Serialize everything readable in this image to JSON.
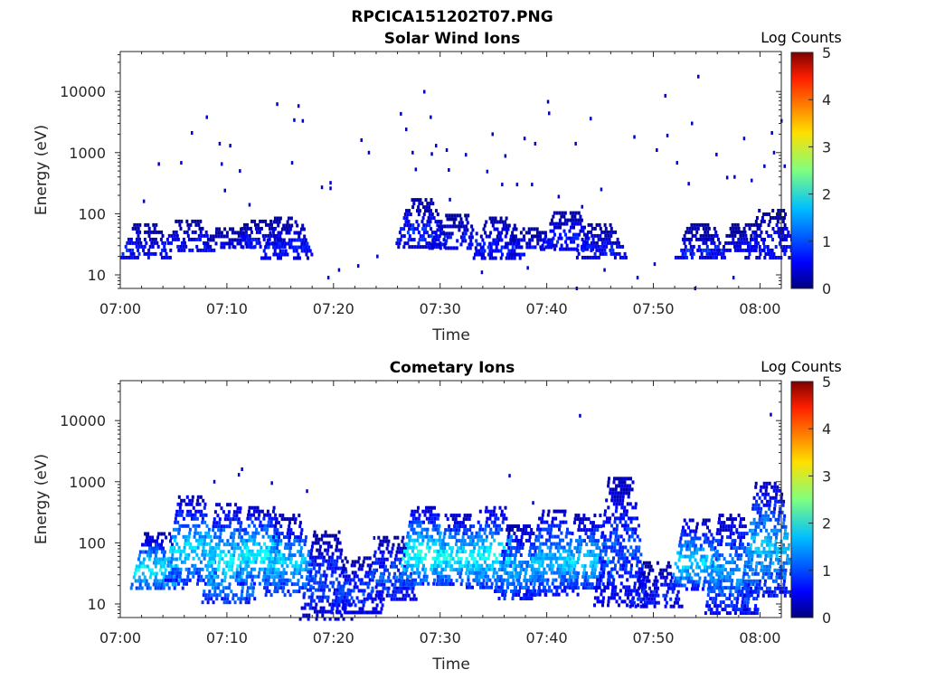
{
  "figure_title": "RPCICA151202T07.PNG",
  "chart_data": [
    {
      "type": "heatmap",
      "title": "Solar Wind Ions",
      "xlabel": "Time",
      "ylabel": "Energy (eV)",
      "x_ticks": [
        "07:00",
        "07:10",
        "07:20",
        "07:30",
        "07:40",
        "07:50",
        "08:00"
      ],
      "y_ticks": [
        "10",
        "100",
        "1000",
        "10000"
      ],
      "y_scale": "log",
      "xlim_minutes": [
        0,
        62
      ],
      "ylim": [
        6,
        45000
      ],
      "colorbar": {
        "label": "Log Counts",
        "ticks": [
          "0",
          "1",
          "2",
          "3",
          "4",
          "5"
        ],
        "range": [
          0,
          5
        ],
        "colormap": "jet"
      },
      "clusters": [
        {
          "t": 2.4,
          "e_lo": 18,
          "e_hi": 70,
          "level": 0.7
        },
        {
          "t": 6.3,
          "e_lo": 25,
          "e_hi": 80,
          "level": 0.7
        },
        {
          "t": 10.1,
          "e_lo": 30,
          "e_hi": 60,
          "level": 0.6
        },
        {
          "t": 12.9,
          "e_lo": 28,
          "e_hi": 80,
          "level": 0.7
        },
        {
          "t": 15.6,
          "e_lo": 18,
          "e_hi": 90,
          "level": 0.7
        },
        {
          "t": 28.2,
          "e_lo": 28,
          "e_hi": 180,
          "level": 0.8
        },
        {
          "t": 31.4,
          "e_lo": 28,
          "e_hi": 100,
          "level": 0.7
        },
        {
          "t": 35.5,
          "e_lo": 18,
          "e_hi": 90,
          "level": 0.7
        },
        {
          "t": 38.4,
          "e_lo": 28,
          "e_hi": 60,
          "level": 0.6
        },
        {
          "t": 41.8,
          "e_lo": 25,
          "e_hi": 110,
          "level": 0.7
        },
        {
          "t": 45.0,
          "e_lo": 20,
          "e_hi": 70,
          "level": 0.7
        },
        {
          "t": 54.4,
          "e_lo": 18,
          "e_hi": 70,
          "level": 0.7
        },
        {
          "t": 58.5,
          "e_lo": 25,
          "e_hi": 70,
          "level": 0.6
        },
        {
          "t": 61.0,
          "e_lo": 18,
          "e_hi": 120,
          "level": 0.7
        }
      ],
      "scatter": [
        [
          2.2,
          160
        ],
        [
          3.6,
          650
        ],
        [
          5.7,
          680
        ],
        [
          6.7,
          2100
        ],
        [
          8.1,
          3800
        ],
        [
          9.3,
          1400
        ],
        [
          9.5,
          650
        ],
        [
          9.8,
          240
        ],
        [
          10.3,
          1300
        ],
        [
          11.2,
          500
        ],
        [
          12.1,
          140
        ],
        [
          14.7,
          6200
        ],
        [
          16.7,
          5800
        ],
        [
          16.3,
          3400
        ],
        [
          17.1,
          3300
        ],
        [
          16.1,
          680
        ],
        [
          18.9,
          270
        ],
        [
          19.7,
          260
        ],
        [
          19.7,
          320
        ],
        [
          22.6,
          1600
        ],
        [
          23.3,
          1000
        ],
        [
          26.3,
          4300
        ],
        [
          26.8,
          2400
        ],
        [
          27.4,
          1000
        ],
        [
          27.7,
          530
        ],
        [
          28.5,
          9900
        ],
        [
          29.1,
          3800
        ],
        [
          29.2,
          950
        ],
        [
          29.6,
          1300
        ],
        [
          30.6,
          1100
        ],
        [
          30.8,
          520
        ],
        [
          30.9,
          170
        ],
        [
          32.4,
          920
        ],
        [
          34.4,
          490
        ],
        [
          34.9,
          2000
        ],
        [
          35.8,
          300
        ],
        [
          36.1,
          880
        ],
        [
          37.2,
          300
        ],
        [
          37.9,
          1700
        ],
        [
          38.6,
          300
        ],
        [
          38.9,
          1400
        ],
        [
          40.1,
          6800
        ],
        [
          40.2,
          4400
        ],
        [
          41.1,
          190
        ],
        [
          42.7,
          1400
        ],
        [
          43.3,
          130
        ],
        [
          44.1,
          3600
        ],
        [
          45.1,
          250
        ],
        [
          48.2,
          1800
        ],
        [
          50.3,
          1100
        ],
        [
          51.1,
          8500
        ],
        [
          51.3,
          1900
        ],
        [
          52.2,
          680
        ],
        [
          53.6,
          3000
        ],
        [
          54.2,
          17500
        ],
        [
          53.3,
          310
        ],
        [
          55.9,
          930
        ],
        [
          56.9,
          390
        ],
        [
          57.6,
          400
        ],
        [
          58.5,
          1700
        ],
        [
          59.2,
          350
        ],
        [
          60.4,
          600
        ],
        [
          61.1,
          2100
        ],
        [
          61.3,
          1000
        ],
        [
          62.0,
          3300
        ],
        [
          62.3,
          600
        ],
        [
          19.5,
          9
        ],
        [
          20.5,
          12
        ],
        [
          22.3,
          14
        ],
        [
          24.1,
          20
        ],
        [
          33.9,
          11
        ],
        [
          38.2,
          13
        ],
        [
          42.8,
          6
        ],
        [
          45.4,
          12
        ],
        [
          48.5,
          9
        ],
        [
          50.1,
          15
        ],
        [
          53.9,
          6
        ],
        [
          57.5,
          9
        ]
      ]
    },
    {
      "type": "heatmap",
      "title": "Cometary Ions",
      "xlabel": "Time",
      "ylabel": "Energy (eV)",
      "x_ticks": [
        "07:00",
        "07:10",
        "07:20",
        "07:30",
        "07:40",
        "07:50",
        "08:00"
      ],
      "y_ticks": [
        "10",
        "100",
        "1000",
        "10000"
      ],
      "y_scale": "log",
      "xlim_minutes": [
        0,
        62
      ],
      "ylim": [
        6,
        45000
      ],
      "colorbar": {
        "label": "Log Counts",
        "ticks": [
          "0",
          "1",
          "2",
          "3",
          "4",
          "5"
        ],
        "range": [
          0,
          5
        ],
        "colormap": "jet"
      },
      "clusters": [
        {
          "t": 3.4,
          "e_lo": 18,
          "e_hi": 150,
          "level": 1.9
        },
        {
          "t": 6.6,
          "e_lo": 22,
          "e_hi": 600,
          "level": 1.7
        },
        {
          "t": 10.1,
          "e_lo": 10,
          "e_hi": 450,
          "level": 1.8
        },
        {
          "t": 13.2,
          "e_lo": 22,
          "e_hi": 400,
          "level": 1.9
        },
        {
          "t": 15.8,
          "e_lo": 14,
          "e_hi": 300,
          "level": 1.6
        },
        {
          "t": 19.3,
          "e_lo": 6,
          "e_hi": 160,
          "level": 1.0
        },
        {
          "t": 22.2,
          "e_lo": 7,
          "e_hi": 60,
          "level": 0.9
        },
        {
          "t": 25.3,
          "e_lo": 12,
          "e_hi": 130,
          "level": 1.1
        },
        {
          "t": 28.5,
          "e_lo": 22,
          "e_hi": 400,
          "level": 2.0
        },
        {
          "t": 31.6,
          "e_lo": 22,
          "e_hi": 300,
          "level": 1.9
        },
        {
          "t": 34.9,
          "e_lo": 18,
          "e_hi": 400,
          "level": 1.9
        },
        {
          "t": 37.4,
          "e_lo": 12,
          "e_hi": 200,
          "level": 1.4
        },
        {
          "t": 40.5,
          "e_lo": 15,
          "e_hi": 350,
          "level": 1.6
        },
        {
          "t": 43.8,
          "e_lo": 18,
          "e_hi": 300,
          "level": 1.7
        },
        {
          "t": 46.9,
          "e_lo": 10,
          "e_hi": 1200,
          "level": 1.0
        },
        {
          "t": 50.2,
          "e_lo": 9,
          "e_hi": 50,
          "level": 0.8
        },
        {
          "t": 54.0,
          "e_lo": 18,
          "e_hi": 250,
          "level": 1.7
        },
        {
          "t": 57.3,
          "e_lo": 7,
          "e_hi": 300,
          "level": 1.4
        },
        {
          "t": 60.7,
          "e_lo": 14,
          "e_hi": 1000,
          "level": 1.6
        }
      ],
      "scatter": [
        [
          8.8,
          1000
        ],
        [
          11.4,
          1600
        ],
        [
          11.1,
          1300
        ],
        [
          14.2,
          950
        ],
        [
          17.5,
          700
        ],
        [
          23.8,
          120
        ],
        [
          36.5,
          1250
        ],
        [
          43.1,
          12000
        ],
        [
          61.0,
          12500
        ],
        [
          38.7,
          450
        ],
        [
          46.5,
          800
        ],
        [
          57.8,
          150
        ]
      ]
    }
  ]
}
